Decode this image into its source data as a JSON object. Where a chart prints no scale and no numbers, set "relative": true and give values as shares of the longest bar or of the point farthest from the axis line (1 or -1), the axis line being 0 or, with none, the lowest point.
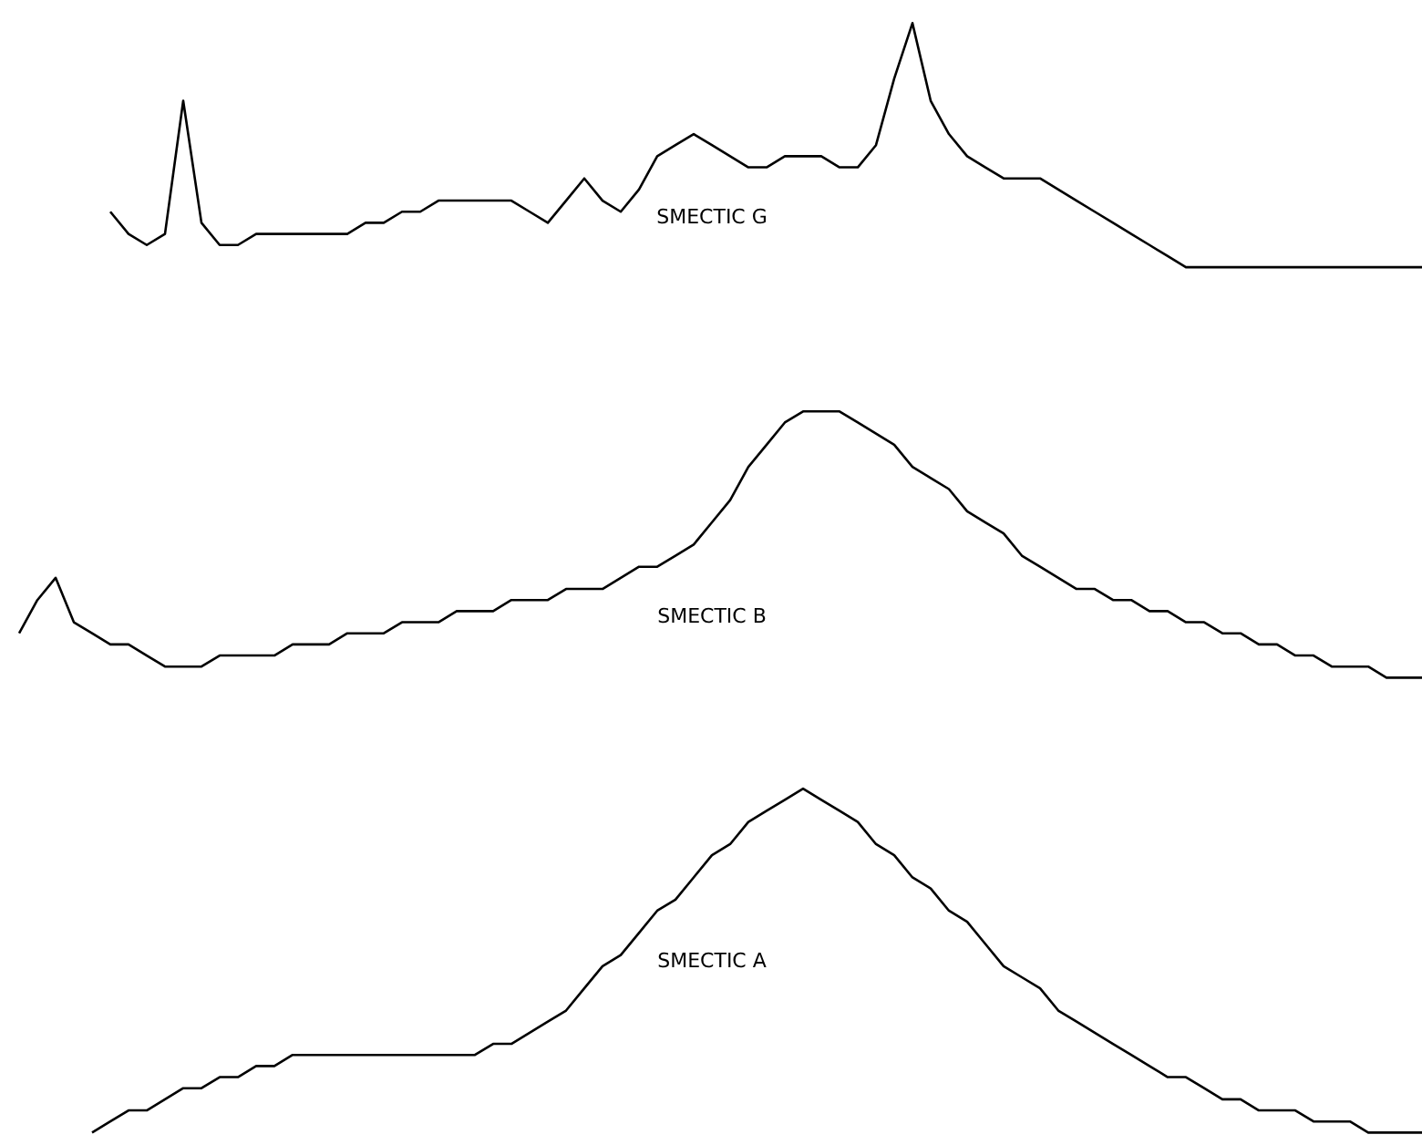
{
  "chart_data": {
    "type": "line",
    "relative": true,
    "grid": false,
    "marker": "none",
    "line_style": "solid",
    "categories": [
      null,
      null,
      null,
      null,
      null,
      null,
      null,
      null,
      null,
      null,
      null,
      null,
      null,
      null,
      null,
      null,
      null,
      null,
      null,
      null,
      null,
      null,
      null,
      null,
      null,
      null,
      null,
      null,
      null,
      null,
      null,
      null,
      null,
      null,
      null,
      null,
      null,
      null,
      null,
      null,
      null,
      null,
      null,
      null,
      null,
      null,
      null,
      null,
      null,
      null,
      null,
      null,
      null,
      null,
      null,
      null,
      null,
      null,
      null,
      null,
      null,
      null,
      null,
      null,
      null,
      null,
      null,
      null,
      null,
      null,
      null,
      null,
      null,
      null,
      null,
      null,
      null,
      null,
      null
    ],
    "series": [
      {
        "name": "SMECTIC G",
        "color": "#000000",
        "values": [
          null,
          null,
          null,
          null,
          null,
          null,
          0.83,
          0.81,
          0.8,
          0.81,
          0.93,
          0.82,
          0.8,
          0.8,
          0.81,
          0.81,
          0.81,
          0.81,
          0.81,
          0.81,
          0.82,
          0.82,
          0.83,
          0.83,
          0.84,
          0.84,
          0.84,
          0.84,
          0.84,
          0.83,
          0.82,
          0.84,
          0.86,
          0.84,
          0.83,
          0.85,
          0.88,
          0.89,
          0.9,
          0.89,
          0.88,
          0.87,
          0.87,
          0.88,
          0.88,
          0.88,
          0.87,
          0.87,
          0.89,
          0.95,
          1.0,
          0.93,
          0.9,
          0.88,
          0.87,
          0.86,
          0.86,
          0.86,
          0.85,
          0.84,
          0.83,
          0.82,
          0.81,
          0.8,
          0.79,
          0.78,
          0.78,
          0.78,
          0.78,
          0.78,
          0.78,
          0.78,
          0.78,
          0.78,
          0.78,
          0.78,
          0.78,
          0.78,
          0.78
        ]
      },
      {
        "name": "SMECTIC B",
        "color": "#000000",
        "values": [
          null,
          0.45,
          0.48,
          0.5,
          0.46,
          0.45,
          0.44,
          0.44,
          0.43,
          0.42,
          0.42,
          0.42,
          0.43,
          0.43,
          0.43,
          0.43,
          0.44,
          0.44,
          0.44,
          0.45,
          0.45,
          0.45,
          0.46,
          0.46,
          0.46,
          0.47,
          0.47,
          0.47,
          0.48,
          0.48,
          0.48,
          0.49,
          0.49,
          0.49,
          0.5,
          0.51,
          0.51,
          0.52,
          0.53,
          0.55,
          0.57,
          0.6,
          0.62,
          0.64,
          0.65,
          0.65,
          0.65,
          0.64,
          0.63,
          0.62,
          0.6,
          0.59,
          0.58,
          0.56,
          0.55,
          0.54,
          0.52,
          0.51,
          0.5,
          0.49,
          0.49,
          0.48,
          0.48,
          0.47,
          0.47,
          0.46,
          0.46,
          0.45,
          0.45,
          0.44,
          0.44,
          0.43,
          0.43,
          0.42,
          0.42,
          0.42,
          0.41,
          0.41,
          0.41
        ]
      },
      {
        "name": "SMECTIC A",
        "color": "#000000",
        "values": [
          null,
          null,
          null,
          null,
          null,
          0.0,
          0.01,
          0.02,
          0.02,
          0.03,
          0.04,
          0.04,
          0.05,
          0.05,
          0.06,
          0.06,
          0.07,
          0.07,
          0.07,
          0.07,
          0.07,
          0.07,
          0.07,
          0.07,
          0.07,
          0.07,
          0.07,
          0.08,
          0.08,
          0.09,
          0.1,
          0.11,
          0.13,
          0.15,
          0.16,
          0.18,
          0.2,
          0.21,
          0.23,
          0.25,
          0.26,
          0.28,
          0.29,
          0.3,
          0.31,
          0.3,
          0.29,
          0.28,
          0.26,
          0.25,
          0.23,
          0.22,
          0.2,
          0.19,
          0.17,
          0.15,
          0.14,
          0.13,
          0.11,
          0.1,
          0.09,
          0.08,
          0.07,
          0.06,
          0.05,
          0.05,
          0.04,
          0.03,
          0.03,
          0.02,
          0.02,
          0.02,
          0.01,
          0.01,
          0.01,
          0.0,
          0.0,
          0.0,
          0.0
        ]
      }
    ]
  }
}
